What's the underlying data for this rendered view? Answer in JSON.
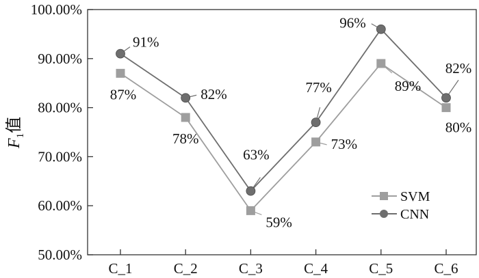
{
  "chart_data": {
    "type": "line",
    "categories": [
      "C_1",
      "C_2",
      "C_3",
      "C_4",
      "C_5",
      "C_6"
    ],
    "series": [
      {
        "name": "SVM",
        "values": [
          87,
          78,
          59,
          73,
          89,
          80
        ],
        "labels": [
          "87%",
          "78%",
          "59%",
          "73%",
          "89%",
          "80%"
        ],
        "color": "#9e9e9e",
        "marker": "square"
      },
      {
        "name": "CNN",
        "values": [
          91,
          82,
          63,
          77,
          96,
          82
        ],
        "labels": [
          "91%",
          "82%",
          "63%",
          "77%",
          "96%",
          "82%"
        ],
        "color": "#6e6e6e",
        "marker": "circle"
      }
    ],
    "ylabel": {
      "main": "F",
      "sub": "1",
      "suffix": "值"
    },
    "xlabel": "",
    "title": "",
    "ylim": [
      50,
      100
    ],
    "yticks": [
      50,
      60,
      70,
      80,
      90,
      100
    ],
    "ytick_labels": [
      "50.00%",
      "60.00%",
      "70.00%",
      "80.00%",
      "90.00%",
      "100.00%"
    ],
    "grid": false,
    "legend_position": "bottom-right"
  }
}
